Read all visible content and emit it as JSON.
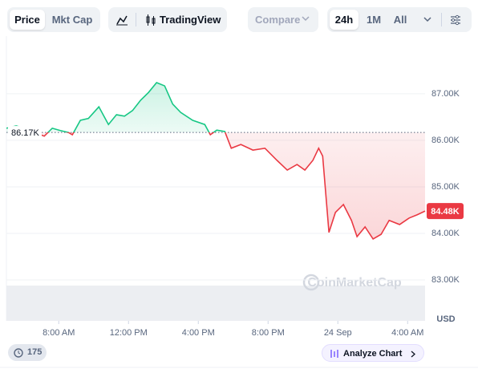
{
  "toolbar": {
    "price": "Price",
    "mkt_cap": "Mkt Cap",
    "trading_view": "TradingView",
    "compare": "Compare",
    "ranges": [
      "24h",
      "1M",
      "All"
    ]
  },
  "chart_data": {
    "type": "line",
    "x": [
      5.0,
      5.56,
      6.02,
      7.17,
      7.63,
      8.09,
      8.55,
      8.78,
      9.24,
      9.7,
      10.3,
      10.85,
      11.31,
      11.77,
      12.23,
      12.69,
      13.15,
      13.61,
      14.07,
      14.53,
      14.99,
      15.68,
      16.37,
      16.69,
      17.06,
      17.52,
      17.89,
      18.44,
      19.13,
      19.82,
      20.51,
      21.1,
      21.66,
      22.11,
      22.57,
      22.9,
      23.13,
      23.49,
      23.86,
      24.32,
      24.78,
      25.1,
      25.56,
      26.02,
      26.48,
      26.94,
      27.54,
      28.09,
      28.55,
      29.0
    ],
    "values": [
      86260,
      86310,
      86260,
      86090,
      86260,
      86210,
      86170,
      86120,
      86430,
      86470,
      86720,
      86340,
      86550,
      86520,
      86640,
      86860,
      87030,
      87240,
      87170,
      86780,
      86600,
      86430,
      86340,
      86120,
      86220,
      86190,
      85830,
      85910,
      85790,
      85830,
      85570,
      85360,
      85480,
      85360,
      85570,
      85830,
      85660,
      84020,
      84450,
      84620,
      84280,
      83930,
      84140,
      83880,
      83980,
      84280,
      84190,
      84330,
      84400,
      84480
    ],
    "up_color": "#16c784",
    "down_color": "#ea3943",
    "reference": {
      "value": 86170,
      "label": "86.17K"
    },
    "last": {
      "value": 84480,
      "label": "84.48K"
    },
    "xlim": [
      5,
      29
    ],
    "xticks": [
      {
        "value": 8,
        "label": "8:00 AM"
      },
      {
        "value": 12,
        "label": "12:00 PM"
      },
      {
        "value": 16,
        "label": "4:00 PM"
      },
      {
        "value": 20,
        "label": "8:00 PM"
      },
      {
        "value": 24,
        "label": "24 Sep"
      },
      {
        "value": 28,
        "label": "4:00 AM"
      }
    ],
    "ylim": [
      82120,
      88240
    ],
    "yticks": [
      {
        "value": 83000,
        "label": "83.00K"
      },
      {
        "value": 84000,
        "label": "84.00K"
      },
      {
        "value": 85000,
        "label": "85.00K"
      },
      {
        "value": 86000,
        "label": "86.00K"
      },
      {
        "value": 87000,
        "label": "87.00K"
      }
    ],
    "y_unit": "USD",
    "grid": true,
    "watermark": "CoinMarketCap"
  },
  "footer": {
    "comments": 175,
    "analyze": "Analyze Chart"
  }
}
